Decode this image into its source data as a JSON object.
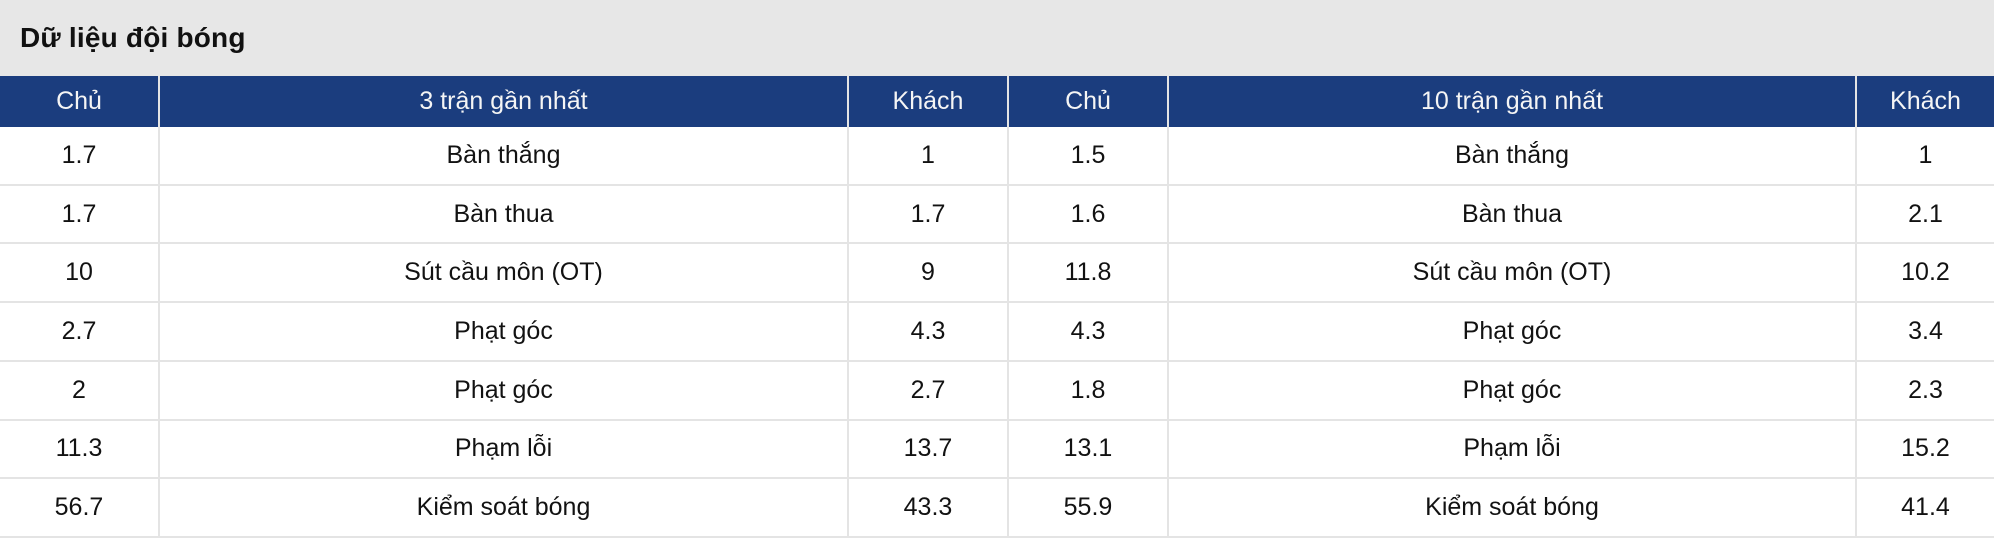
{
  "title": "Dữ liệu đội bóng",
  "colors": {
    "header_bg": "#1b3d7e",
    "header_text": "#f5f5f5",
    "title_bg": "#e7e7e7",
    "divider": "#e4e4e4",
    "body_text": "#121212"
  },
  "tables": [
    {
      "headers": {
        "home": "Chủ",
        "period": "3 trận gần nhất",
        "away": "Khách"
      },
      "rows": [
        {
          "home": "1.7",
          "stat": "Bàn thắng",
          "away": "1"
        },
        {
          "home": "1.7",
          "stat": "Bàn thua",
          "away": "1.7"
        },
        {
          "home": "10",
          "stat": "Sút cầu môn (OT)",
          "away": "9"
        },
        {
          "home": "2.7",
          "stat": "Phạt góc",
          "away": "4.3"
        },
        {
          "home": "2",
          "stat": "Phạt góc",
          "away": "2.7"
        },
        {
          "home": "11.3",
          "stat": "Phạm lỗi",
          "away": "13.7"
        },
        {
          "home": "56.7",
          "stat": "Kiểm soát bóng",
          "away": "43.3"
        }
      ]
    },
    {
      "headers": {
        "home": "Chủ",
        "period": "10 trận gần nhất",
        "away": "Khách"
      },
      "rows": [
        {
          "home": "1.5",
          "stat": "Bàn thắng",
          "away": "1"
        },
        {
          "home": "1.6",
          "stat": "Bàn thua",
          "away": "2.1"
        },
        {
          "home": "11.8",
          "stat": "Sút cầu môn (OT)",
          "away": "10.2"
        },
        {
          "home": "4.3",
          "stat": "Phạt góc",
          "away": "3.4"
        },
        {
          "home": "1.8",
          "stat": "Phạt góc",
          "away": "2.3"
        },
        {
          "home": "13.1",
          "stat": "Phạm lỗi",
          "away": "15.2"
        },
        {
          "home": "55.9",
          "stat": "Kiểm soát bóng",
          "away": "41.4"
        }
      ]
    }
  ]
}
